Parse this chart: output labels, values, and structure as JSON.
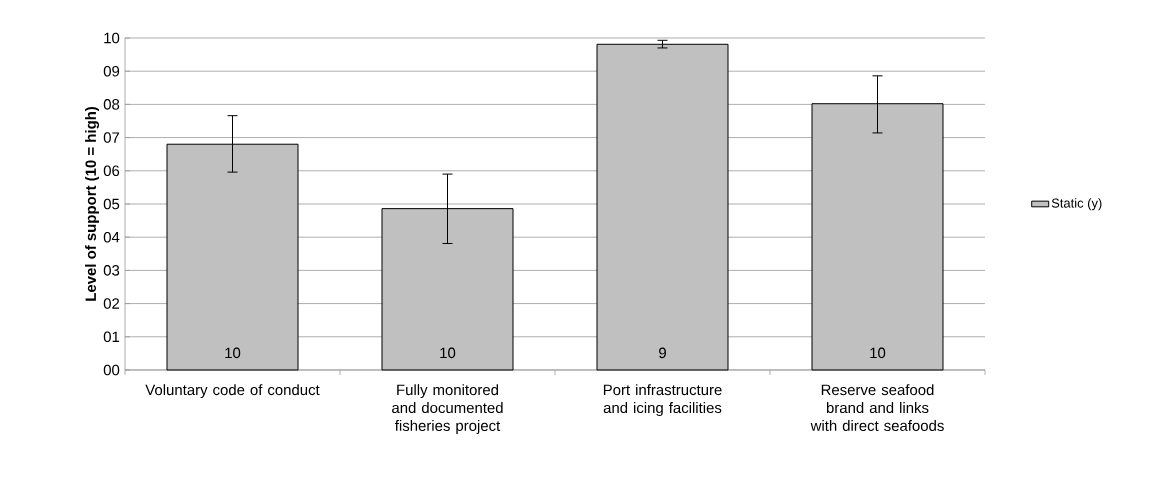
{
  "chart_data": {
    "type": "bar",
    "ylabel": "Level of support (10 = high)",
    "categories": [
      "Voluntary code of conduct",
      "Fully monitored and documented fisheries project",
      "Port infrastructure and icing facilities",
      "Reserve seafood brand and links with direct seafoods"
    ],
    "series": [
      {
        "name": "Static (y)",
        "color": "#c0c0c0",
        "values": [
          6.8,
          4.86,
          9.81,
          8.02
        ],
        "errors": [
          [
            5.96,
            7.66
          ],
          [
            3.81,
            5.9
          ],
          [
            9.7,
            9.93
          ],
          [
            7.14,
            8.86
          ]
        ]
      }
    ],
    "ylim": [
      0,
      10
    ],
    "yticks": [
      {
        "value": 0,
        "label": "00"
      },
      {
        "value": 1,
        "label": "01"
      },
      {
        "value": 2,
        "label": "02"
      },
      {
        "value": 3,
        "label": "03"
      },
      {
        "value": 4,
        "label": "04"
      },
      {
        "value": 5,
        "label": "05"
      },
      {
        "value": 6,
        "label": "06"
      },
      {
        "value": 7,
        "label": "07"
      },
      {
        "value": 8,
        "label": "08"
      },
      {
        "value": 9,
        "label": "09"
      },
      {
        "value": 10,
        "label": "10"
      }
    ],
    "grid": "y",
    "legend": "right",
    "annotations": [
      "10",
      "10",
      "9",
      "10"
    ]
  }
}
